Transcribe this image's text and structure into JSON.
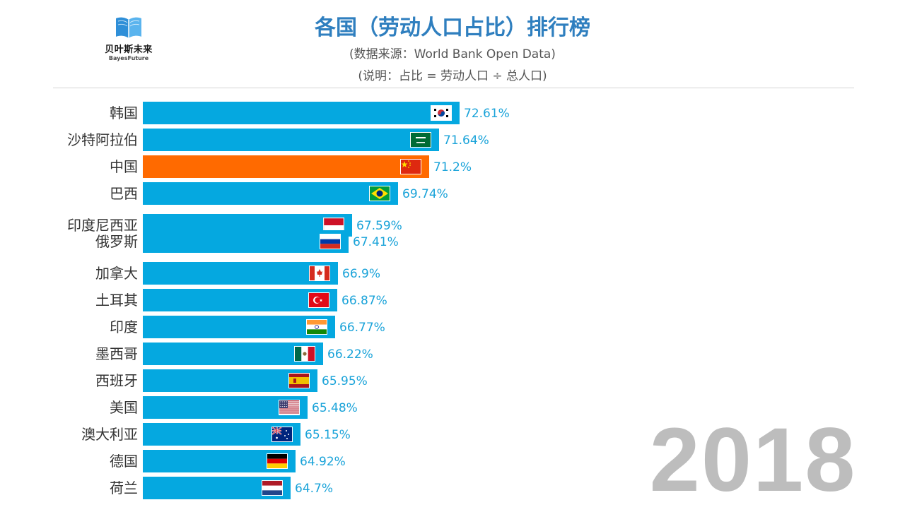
{
  "header": {
    "title": "各国（劳动人口占比）排行榜",
    "source": "(数据来源：World Bank Open Data)",
    "note": "(说明：占比 = 劳动人口 ÷ 总人口)"
  },
  "logo": {
    "name": "贝叶斯未来",
    "subtitle": "BayesFuture",
    "icon": "book-icon"
  },
  "year": "2018",
  "colors": {
    "bar": "#05a8e0",
    "highlight": "#ff6a00",
    "value_label": "#1aa3d9",
    "title": "#2f7fbf"
  },
  "chart_data": {
    "type": "bar",
    "orientation": "horizontal",
    "title": "各国（劳动人口占比）排行榜",
    "year": "2018",
    "highlight": "中国",
    "categories": [
      "韩国",
      "沙特阿拉伯",
      "中国",
      "巴西",
      "印度尼西亚",
      "俄罗斯",
      "加拿大",
      "土耳其",
      "印度",
      "墨西哥",
      "西班牙",
      "美国",
      "澳大利亚",
      "德国",
      "荷兰"
    ],
    "values": [
      72.61,
      71.64,
      71.2,
      69.74,
      67.59,
      67.41,
      66.9,
      66.87,
      66.77,
      66.22,
      65.95,
      65.48,
      65.15,
      64.92,
      64.7
    ],
    "value_labels": [
      "72.61%",
      "71.64%",
      "71.2%",
      "69.74%",
      "67.59%",
      "67.41%",
      "66.9%",
      "66.87%",
      "66.77%",
      "66.22%",
      "65.95%",
      "65.48%",
      "65.15%",
      "64.92%",
      "64.7%"
    ],
    "flags": [
      "kr",
      "sa",
      "cn",
      "br",
      "id",
      "ru",
      "ca",
      "tr",
      "in",
      "mx",
      "es",
      "us",
      "au",
      "de",
      "nl"
    ],
    "unit": "%"
  }
}
